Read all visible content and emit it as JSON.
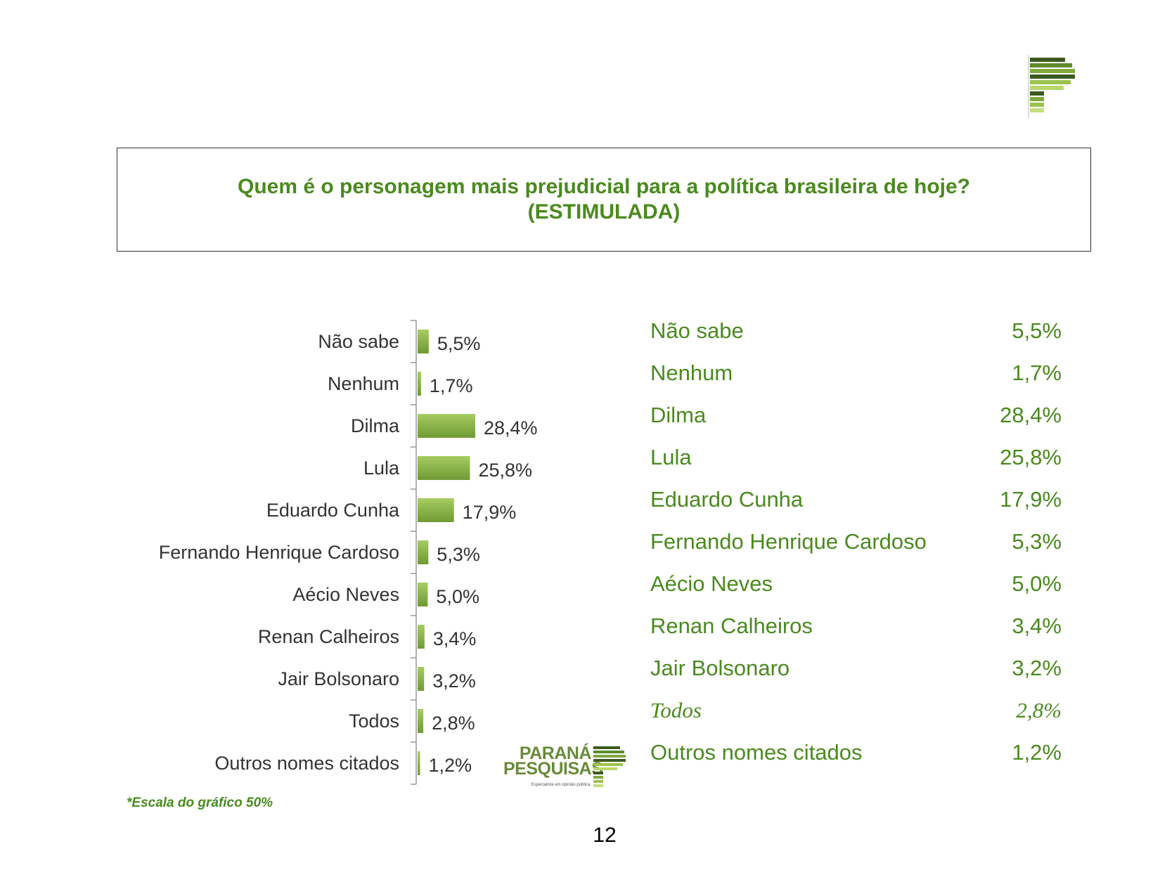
{
  "title": {
    "line1": "Quem é o personagem mais prejudicial para a política brasileira de hoje?",
    "line2": "(ESTIMULADA)"
  },
  "chart_data": {
    "type": "bar",
    "orientation": "horizontal",
    "categories": [
      "Não sabe",
      "Nenhum",
      "Dilma",
      "Lula",
      "Eduardo Cunha",
      "Fernando Henrique Cardoso",
      "Aécio Neves",
      "Renan Calheiros",
      "Jair Bolsonaro",
      "Todos",
      "Outros nomes citados"
    ],
    "values": [
      5.5,
      1.7,
      28.4,
      25.8,
      17.9,
      5.3,
      5.0,
      3.4,
      3.2,
      2.8,
      1.2
    ],
    "value_labels": [
      "5,5%",
      "1,7%",
      "28,4%",
      "25,8%",
      "17,9%",
      "5,3%",
      "5,0%",
      "3,4%",
      "3,2%",
      "2,8%",
      "1,2%"
    ],
    "xlim": [
      0,
      50
    ],
    "bar_color": "#8db64e",
    "grid": false
  },
  "table": {
    "rows": [
      {
        "name": "Não sabe",
        "value": "5,5%"
      },
      {
        "name": "Nenhum",
        "value": "1,7%"
      },
      {
        "name": "Dilma",
        "value": "28,4%"
      },
      {
        "name": "Lula",
        "value": "25,8%"
      },
      {
        "name": "Eduardo Cunha",
        "value": "17,9%"
      },
      {
        "name": "Fernando Henrique Cardoso",
        "value": "5,3%"
      },
      {
        "name": "Aécio Neves",
        "value": "5,0%"
      },
      {
        "name": "Renan Calheiros",
        "value": "3,4%"
      },
      {
        "name": "Jair Bolsonaro",
        "value": "3,2%"
      },
      {
        "name": "Todos",
        "value": "2,8%"
      },
      {
        "name": "Outros nomes citados",
        "value": "1,2%"
      }
    ]
  },
  "note": "*Escala do gráfico 50%",
  "brand": {
    "line1": "PARANÁ",
    "line2": "PESQUISAS",
    "tagline": "Especialista em opinião pública.",
    "logo_icon": "parana-pesquisas-logo-icon"
  },
  "page_number": "12",
  "colors": {
    "accent_green": "#4a8a1e",
    "bar_green": "#8db64e",
    "text_gray": "#333333"
  }
}
